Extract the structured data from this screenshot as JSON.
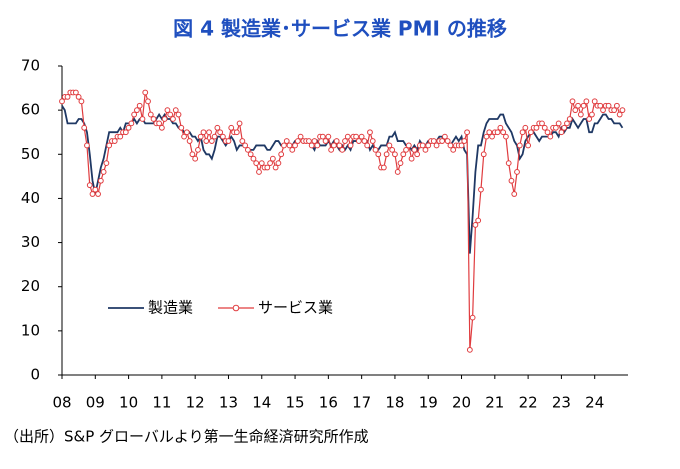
{
  "chart_data": {
    "type": "line",
    "title": "図 4  製造業･サービス業 PMI の推移",
    "source": "（出所）S&P グローバルより第一生命経済研究所作成",
    "categories": [
      "08",
      null,
      null,
      null,
      null,
      null,
      null,
      null,
      null,
      null,
      null,
      null,
      "09",
      null,
      null,
      null,
      null,
      null,
      null,
      null,
      null,
      null,
      null,
      null,
      "10",
      null,
      null,
      null,
      null,
      null,
      null,
      null,
      null,
      null,
      null,
      null,
      "11",
      null,
      null,
      null,
      null,
      null,
      null,
      null,
      null,
      null,
      null,
      null,
      "12",
      null,
      null,
      null,
      null,
      null,
      null,
      null,
      null,
      null,
      null,
      null,
      "13",
      null,
      null,
      null,
      null,
      null,
      null,
      null,
      null,
      null,
      null,
      null,
      "14",
      null,
      null,
      null,
      null,
      null,
      null,
      null,
      null,
      null,
      null,
      null,
      "15",
      null,
      null,
      null,
      null,
      null,
      null,
      null,
      null,
      null,
      null,
      null,
      "16",
      null,
      null,
      null,
      null,
      null,
      null,
      null,
      null,
      null,
      null,
      null,
      "17",
      null,
      null,
      null,
      null,
      null,
      null,
      null,
      null,
      null,
      null,
      null,
      "18",
      null,
      null,
      null,
      null,
      null,
      null,
      null,
      null,
      null,
      null,
      null,
      "19",
      null,
      null,
      null,
      null,
      null,
      null,
      null,
      null,
      null,
      null,
      null,
      "20",
      null,
      null,
      null,
      null,
      null,
      null,
      null,
      null,
      null,
      null,
      null,
      "21",
      null,
      null,
      null,
      null,
      null,
      null,
      null,
      null,
      null,
      null,
      null,
      "22",
      null,
      null,
      null,
      null,
      null,
      null,
      null,
      null,
      null,
      null,
      null,
      "23",
      null,
      null,
      null,
      null,
      null,
      null,
      null,
      null,
      null,
      null,
      null,
      "24",
      null,
      null,
      null,
      null,
      null,
      null,
      null,
      null,
      null,
      null
    ],
    "series": [
      {
        "name": "製造業",
        "color": "#1f3864",
        "marker": false,
        "values": [
          61,
          60,
          57,
          57,
          57,
          57,
          58,
          58,
          57,
          55,
          50,
          44,
          41,
          44,
          47,
          49,
          52,
          55,
          55,
          55,
          55,
          56,
          55,
          57,
          57,
          57,
          58,
          57,
          58,
          58,
          57,
          57,
          57,
          57,
          58,
          59,
          58,
          59,
          58,
          58,
          57,
          57,
          56,
          56,
          55,
          55,
          55,
          54,
          54,
          53,
          54,
          51,
          50,
          50,
          49,
          51,
          54,
          54,
          53,
          52,
          53,
          54,
          53,
          51,
          52,
          52,
          52,
          51,
          51,
          51,
          52,
          52,
          52,
          52,
          51,
          51,
          52,
          53,
          53,
          52,
          52,
          53,
          52,
          52,
          53,
          53,
          54,
          53,
          53,
          53,
          52,
          51,
          53,
          52,
          52,
          52,
          53,
          52,
          53,
          52,
          51,
          52,
          51,
          52,
          51,
          53,
          53,
          53,
          54,
          53,
          53,
          51,
          52,
          51,
          51,
          52,
          52,
          52,
          54,
          54,
          55,
          53,
          53,
          53,
          52,
          52,
          51,
          52,
          51,
          53,
          52,
          52,
          53,
          53,
          53,
          53,
          54,
          54,
          53,
          53,
          52,
          53,
          54,
          53,
          54,
          51,
          50,
          27.5,
          36,
          46,
          52,
          52,
          55,
          57,
          58,
          58,
          58,
          58,
          59,
          59,
          57,
          56,
          55,
          53,
          52,
          49,
          50,
          53,
          54,
          55,
          55,
          54,
          53,
          54,
          54,
          54,
          54,
          55,
          55,
          54,
          56,
          55,
          56,
          56,
          58,
          57,
          56,
          57,
          58,
          58,
          55,
          55,
          57,
          57,
          58,
          59,
          59,
          58,
          58,
          57,
          57,
          57,
          56
        ]
      },
      {
        "name": "サービス業",
        "color": "#e03c3f",
        "marker": true,
        "values": [
          62,
          63,
          63,
          64,
          64,
          64,
          63,
          62,
          56,
          52,
          43,
          41,
          42,
          41,
          44,
          46,
          48,
          52,
          53,
          53,
          54,
          54,
          55,
          55,
          56,
          57,
          59,
          60,
          61,
          58,
          64,
          62,
          59,
          58,
          57,
          57,
          56,
          58,
          60,
          59,
          58,
          60,
          59,
          56,
          54,
          55,
          53,
          50,
          49,
          51,
          54,
          55,
          53,
          55,
          53,
          54,
          56,
          55,
          54,
          53,
          53,
          56,
          55,
          55,
          57,
          53,
          52,
          51,
          50,
          49,
          48,
          46,
          48,
          47,
          47,
          48,
          49,
          47,
          48,
          50,
          52,
          53,
          52,
          51,
          52,
          53,
          54,
          53,
          53,
          53,
          52,
          53,
          52,
          54,
          54,
          53,
          54,
          51,
          52,
          53,
          52,
          51,
          53,
          54,
          52,
          54,
          54,
          53,
          54,
          53,
          52,
          55,
          53,
          51,
          50,
          47,
          47,
          50,
          52,
          51,
          50,
          46,
          48,
          50,
          51,
          52,
          49,
          51,
          50,
          52,
          52,
          51,
          52,
          53,
          53,
          52,
          53,
          53,
          54,
          53,
          52,
          51,
          52,
          52,
          52,
          53,
          55,
          5.7,
          13,
          34,
          35,
          42,
          50,
          54,
          55,
          54,
          55,
          55,
          56,
          55,
          54,
          48,
          44,
          41,
          46,
          52,
          55,
          56,
          52,
          55,
          56,
          56,
          57,
          57,
          56,
          55,
          54,
          56,
          56,
          57,
          55,
          56,
          57,
          58,
          62,
          60,
          61,
          59,
          61,
          62,
          58,
          59,
          62,
          61,
          61,
          60,
          61,
          61,
          60,
          60,
          61,
          59,
          60
        ]
      }
    ],
    "ylim": [
      0,
      70
    ],
    "yticks": [
      0,
      10,
      20,
      30,
      40,
      50,
      60,
      70
    ],
    "grid": false,
    "legend": "lower-left"
  }
}
